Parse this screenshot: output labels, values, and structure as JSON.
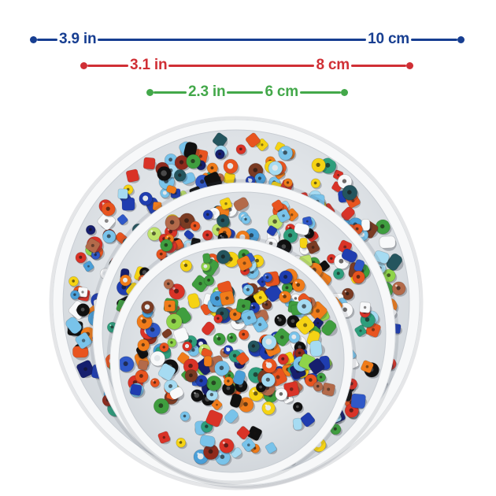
{
  "page": {
    "background_color": "#ffffff"
  },
  "rulers": [
    {
      "name": "large-tray-diameter",
      "color": "#173e91",
      "label_in": "3.9 in",
      "label_cm": "10 cm"
    },
    {
      "name": "medium-tray-diameter",
      "color": "#d02f35",
      "label_in": "3.1 in",
      "label_cm": "8 cm"
    },
    {
      "name": "small-tray-diameter",
      "color": "#43a84a",
      "label_in": "2.3 in",
      "label_cm": "6 cm"
    }
  ],
  "photo": {
    "description": "Three stacked round white plastic trays filled with assorted multicolored seed beads",
    "tray_rim_color": "#f7f8f9",
    "tray_floor_color": "#dfe3e7",
    "bead_palette": [
      {
        "color": "#e8541f",
        "weight": 3.0
      },
      {
        "color": "#f07c1a",
        "weight": 3.0
      },
      {
        "color": "#f5d314",
        "weight": 2.6
      },
      {
        "color": "#d93327",
        "weight": 2.6
      },
      {
        "color": "#8f2b1c",
        "weight": 1.2
      },
      {
        "color": "#b36a4a",
        "weight": 1.6
      },
      {
        "color": "#7a3b23",
        "weight": 0.8
      },
      {
        "color": "#1f3db0",
        "weight": 2.6
      },
      {
        "color": "#161f6e",
        "weight": 1.0
      },
      {
        "color": "#2f58c8",
        "weight": 1.2
      },
      {
        "color": "#79c3ea",
        "weight": 2.2
      },
      {
        "color": "#a6dbf2",
        "weight": 1.4
      },
      {
        "color": "#4a9fd8",
        "weight": 1.4
      },
      {
        "color": "#101010",
        "weight": 2.8
      },
      {
        "color": "#f8f9fa",
        "weight": 2.4
      },
      {
        "color": "#3f9e3f",
        "weight": 1.8
      },
      {
        "color": "#8fd44a",
        "weight": 1.4
      },
      {
        "color": "#bfe36a",
        "weight": 0.9
      },
      {
        "color": "#2e9e7c",
        "weight": 1.3
      },
      {
        "color": "#24555e",
        "weight": 0.9
      }
    ]
  }
}
